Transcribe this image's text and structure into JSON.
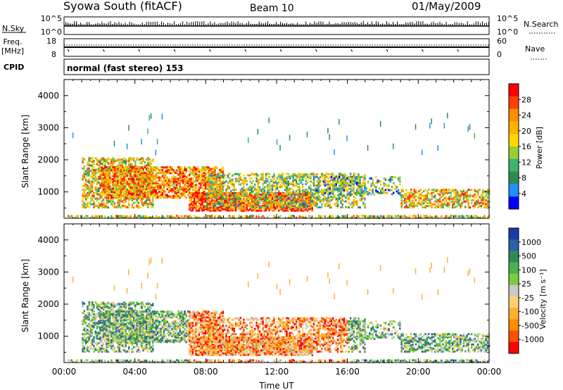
{
  "header": {
    "station": "Syowa South (fitACF)",
    "beam": "Beam 10",
    "date": "01/May/2009"
  },
  "aux": {
    "nsky_label": "N.Sky",
    "nsky_top": "10^5",
    "nsky_bottom": "10^0",
    "nsearch_label": "N.Search",
    "nsearch_top": "10^5",
    "nsearch_bottom": "10^0",
    "freq_label_1": "Freq.",
    "freq_label_2": "[MHz]",
    "freq_top": "18",
    "freq_bottom": "8",
    "nave_label": "Nave",
    "nave_top": "60",
    "nave_bottom": "0",
    "cpid_label": "CPID",
    "mode_text": "normal (fast stereo) 153"
  },
  "chart_data": [
    {
      "type": "heatmap",
      "title": "",
      "quantity": "Power",
      "ylabel": "Slant Range [km]",
      "colorbar_label": "Power [dB]",
      "colorbar_ticks": [
        "28",
        "24",
        "20",
        "16",
        "12",
        "8",
        "4"
      ],
      "colorbar_colors": [
        "#ff0000",
        "#ff4000",
        "#ff8c00",
        "#ffb000",
        "#ffd700",
        "#9acd32",
        "#3cb371",
        "#2e8b57",
        "#1e90ff",
        "#0000ff"
      ],
      "yticks": [
        "4000",
        "3000",
        "2000",
        "1000"
      ],
      "ylim": [
        180,
        4500
      ],
      "xlim": [
        "00:00",
        "24:00"
      ]
    },
    {
      "type": "heatmap",
      "title": "",
      "quantity": "Velocity",
      "ylabel": "Slant Range [km]",
      "colorbar_label": "Velocity [m s⁻¹]",
      "colorbar_ticks": [
        "1000",
        "500",
        "100",
        "25",
        "-25",
        "-100",
        "-500",
        "-1000"
      ],
      "colorbar_colors": [
        "#1a3aa8",
        "#2e5fa8",
        "#2e8b57",
        "#4caf50",
        "#7ccd3c",
        "#c8c8c8",
        "#ffd070",
        "#ffb030",
        "#ff8c00",
        "#ff5000",
        "#ff0000"
      ],
      "yticks": [
        "4000",
        "3000",
        "2000",
        "1000"
      ],
      "ylim": [
        180,
        4500
      ],
      "xlim": [
        "00:00",
        "24:00"
      ],
      "xticks": [
        "00:00",
        "04:00",
        "08:00",
        "12:00",
        "16:00",
        "20:00",
        "00:00"
      ],
      "xlabel": "Time UT"
    }
  ]
}
